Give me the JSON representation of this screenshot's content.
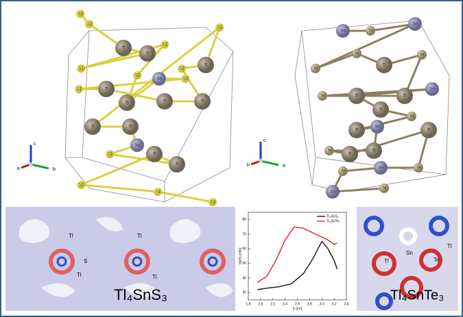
{
  "structure_left": {
    "atoms": [
      "S1",
      "S1",
      "Tl",
      "Tl",
      "S1",
      "S1",
      "S2",
      "Tl",
      "Sn",
      "S2",
      "S1",
      "Tl",
      "Tl",
      "Tl",
      "S2",
      "Tl",
      "S1",
      "Tl",
      "Tl",
      "Sn",
      "S2",
      "Tl",
      "Tl",
      "S1",
      "S1",
      "S1"
    ],
    "axes": [
      "c",
      "a",
      "b"
    ]
  },
  "structure_right": {
    "atoms": [
      "Sn",
      "Te",
      "Sn",
      "Te",
      "Te",
      "Tl",
      "Te",
      "Tl",
      "Te",
      "Sn",
      "Tl",
      "Tl",
      "Te",
      "Tl",
      "Sn",
      "Tl",
      "Te",
      "Tl",
      "Tl",
      "Te",
      "Sn",
      "Te",
      "Sn",
      "Te"
    ],
    "axes": [
      "c",
      "b",
      "a"
    ]
  },
  "map_left": {
    "atom_labels": [
      "Tl",
      "Tl",
      "S",
      "Tl",
      "Tl"
    ],
    "compound": "Tl₄SnS₃"
  },
  "map_right": {
    "atom_labels": [
      "Sn",
      "Tl",
      "Te",
      "Tl"
    ],
    "compound": "Tl₄SnTe₃"
  },
  "chart_data": {
    "type": "line",
    "x_label": "E [eV]",
    "y_label": "ε(arb.units)",
    "xlim": [
      1.8,
      3.4
    ],
    "xticks": [
      1.8,
      {
        "value": 2,
        "label": "2.0"
      },
      2.2,
      2.4,
      2.6,
      2.8,
      {
        "value": 3,
        "label": "3.0"
      },
      3.2,
      3.4
    ],
    "ylim": [
      25,
      85
    ],
    "yticks": [
      30,
      40,
      50,
      60,
      70,
      80
    ],
    "series": [
      {
        "name": "Tl₄SnS₃",
        "color": "#111111",
        "x": [
          1.95,
          2.1,
          2.3,
          2.5,
          2.7,
          2.85,
          3.0,
          3.1,
          3.2,
          3.25
        ],
        "values": [
          32,
          33,
          34,
          36,
          43,
          53,
          65,
          60,
          52,
          46
        ]
      },
      {
        "name": "Tl₄SnTe₃",
        "color": "#e02020",
        "x": [
          1.95,
          2.1,
          2.25,
          2.4,
          2.55,
          2.7,
          2.85,
          3.0,
          3.1,
          3.2,
          3.25
        ],
        "values": [
          37,
          41,
          52,
          66,
          75,
          74,
          71,
          68,
          66,
          63,
          64
        ]
      }
    ]
  }
}
